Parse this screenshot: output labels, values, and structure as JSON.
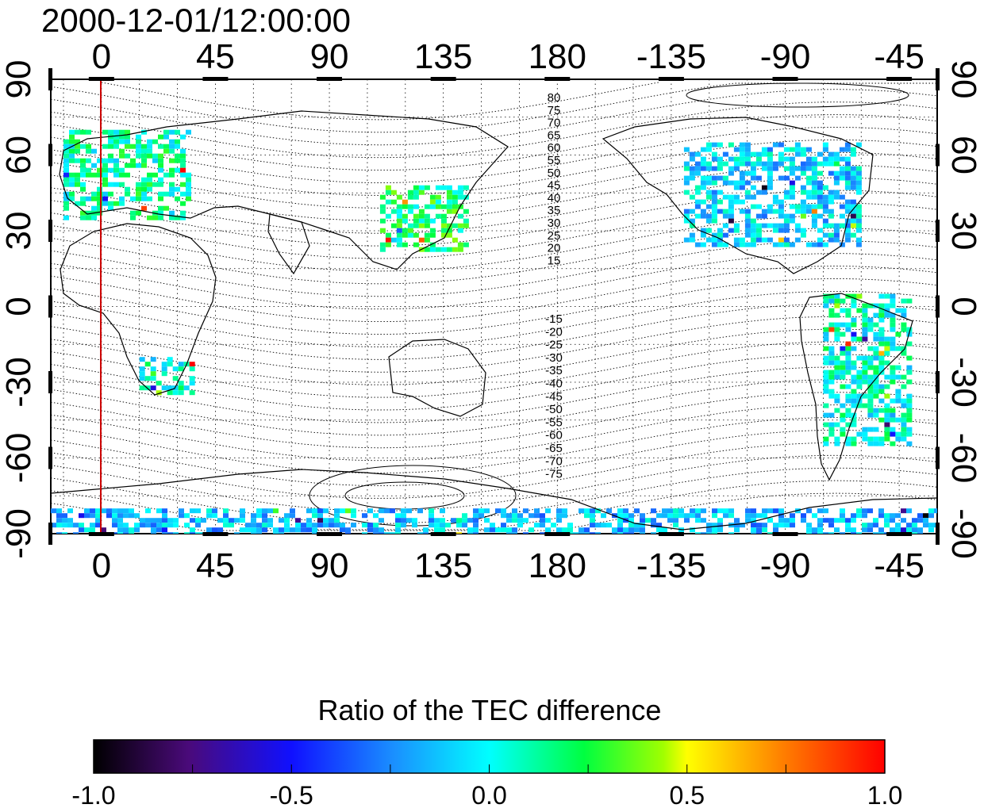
{
  "figure": {
    "timestamp": "2000-12-01/12:00:00",
    "colorbar_title": "Ratio of the TEC difference"
  },
  "map_axes": {
    "lon_ticks": [
      "0",
      "45",
      "90",
      "135",
      "180",
      "-135",
      "-90",
      "-45"
    ],
    "lat_ticks_left": [
      "90",
      "60",
      "30",
      "0",
      "-30",
      "-60",
      "-90"
    ],
    "lat_ticks_right": [
      "90",
      "60",
      "30",
      "0",
      "-30",
      "-60",
      "-90"
    ],
    "lon_range": [
      -20,
      330
    ],
    "lat_range": [
      -90,
      90
    ],
    "reference_meridian": 0,
    "reference_meridian_color": "#cc0000",
    "grid": "dotted"
  },
  "contour_labels": {
    "north": [
      "80",
      "75",
      "70",
      "65",
      "60",
      "55",
      "50",
      "45",
      "40",
      "35",
      "30",
      "25",
      "20",
      "15"
    ],
    "south": [
      "-15",
      "-20",
      "-25",
      "-30",
      "-35",
      "-40",
      "-45",
      "-50",
      "-55",
      "-60",
      "-65",
      "-70",
      "-75"
    ]
  },
  "colorbar": {
    "tick_labels": [
      "-1.0",
      "-0.5",
      "0.0",
      "0.5",
      "1.0"
    ],
    "min": -1.0,
    "max": 1.0,
    "colormap": "black-purple-blue-cyan-green-yellow-red"
  },
  "data_regions": [
    {
      "name": "europe",
      "lon": [
        -15,
        35
      ],
      "lat": [
        35,
        70
      ],
      "value": 0.1
    },
    {
      "name": "east-asia",
      "lon": [
        110,
        145
      ],
      "lat": [
        22,
        48
      ],
      "value": 0.2
    },
    {
      "name": "north-america",
      "lon": [
        -130,
        -60
      ],
      "lat": [
        25,
        65
      ],
      "value": -0.1
    },
    {
      "name": "south-america",
      "lon": [
        -75,
        -40
      ],
      "lat": [
        -55,
        5
      ],
      "value": 0.05
    },
    {
      "name": "southern-africa",
      "lon": [
        15,
        35
      ],
      "lat": [
        -35,
        -20
      ],
      "value": 0.05
    },
    {
      "name": "antarctica",
      "lon": [
        -20,
        330
      ],
      "lat": [
        -90,
        -80
      ],
      "value": -0.15
    }
  ]
}
